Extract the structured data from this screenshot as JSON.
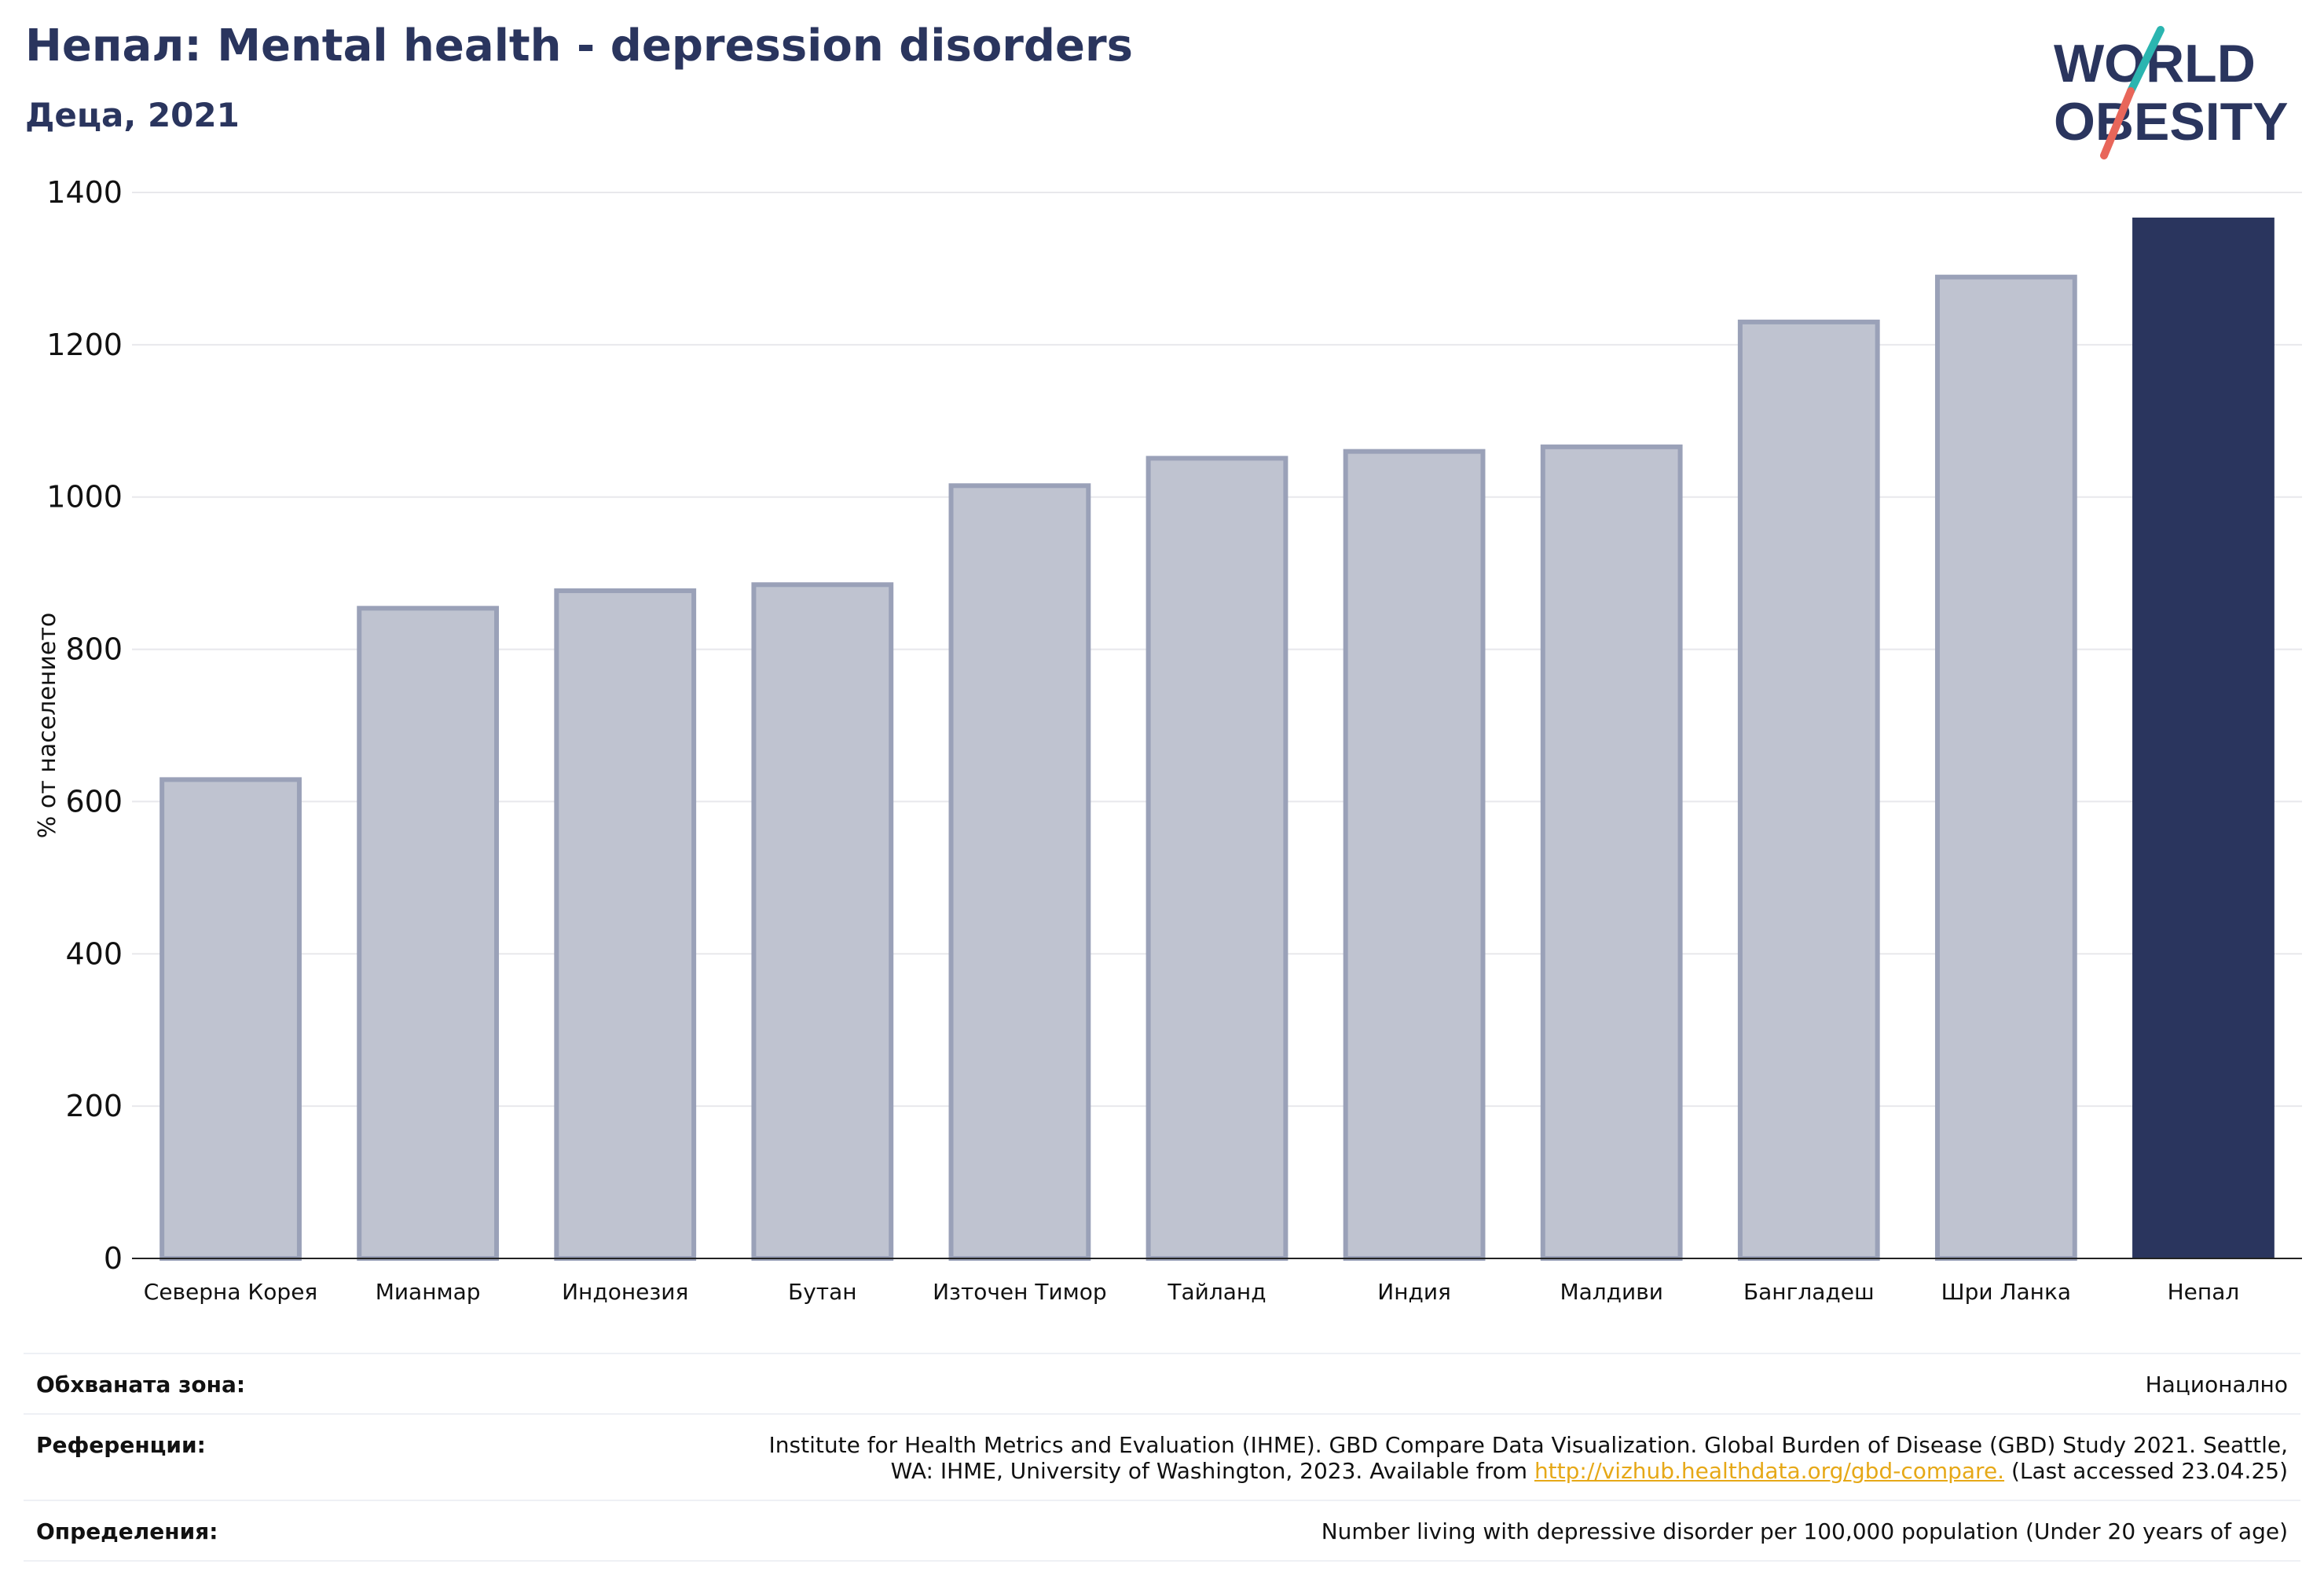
{
  "header": {
    "title": "Непал: Mental health - depression disorders",
    "subtitle": "Деца, 2021"
  },
  "logo": {
    "line1": "WORLD",
    "line2": "OBESITY"
  },
  "colors": {
    "title": "#2a355e",
    "highlight_bar": "#2a355e",
    "other_bar_fill": "#bfc3d0",
    "other_bar_stroke": "#9aa1b8",
    "gridline": "#e8e8ec",
    "link": "#e6a817",
    "logo_teal": "#2bb5b0",
    "logo_coral": "#e8665a"
  },
  "chart_data": {
    "type": "bar",
    "title": "Непал: Mental health - depression disorders",
    "subtitle": "Деца, 2021",
    "ylabel": "% от населението",
    "xlabel": "",
    "ylim": [
      0,
      1400
    ],
    "yticks": [
      0,
      200,
      400,
      600,
      800,
      1000,
      1200,
      1400
    ],
    "grid": true,
    "highlight": "Непал",
    "categories": [
      "Северна Корея",
      "Мианмар",
      "Индонезия",
      "Бутан",
      "Източен Тимор",
      "Тайланд",
      "Индия",
      "Малдиви",
      "Бангладеш",
      "Шри Ланка",
      "Непал"
    ],
    "values": [
      632,
      857,
      880,
      888,
      1018,
      1054,
      1063,
      1069,
      1233,
      1292,
      1367
    ]
  },
  "footer": {
    "coverage_label": "Обхваната зона:",
    "coverage_value": "Национално",
    "references_label": "Референции:",
    "references_text_1": "Institute for Health Metrics and Evaluation (IHME). GBD Compare Data Visualization. Global Burden of Disease (GBD) Study 2021. Seattle,",
    "references_text_2": "WA: IHME, University of Washington, 2023. Available from",
    "references_link": "http://vizhub.healthdata.org/gbd-compare.",
    "references_text_3": "(Last accessed 23.04.25)",
    "definitions_label": "Определения:",
    "definitions_value": "Number living with depressive disorder per 100,000 population (Under 20 years of age)"
  }
}
